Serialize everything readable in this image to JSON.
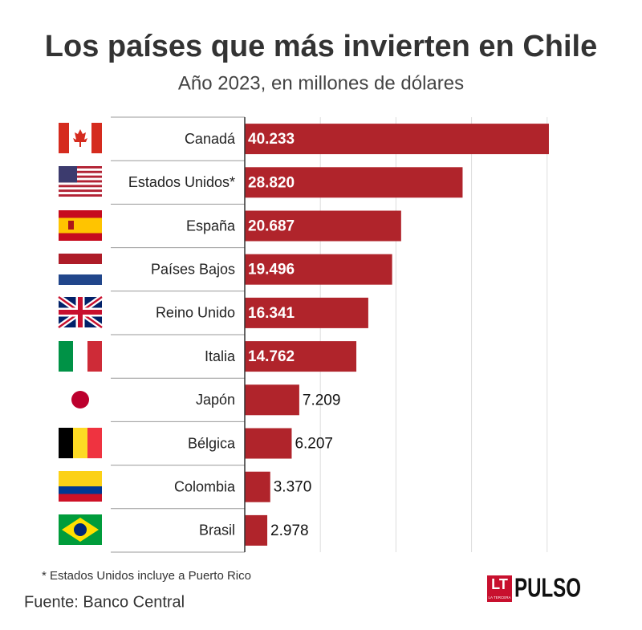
{
  "chart_data": {
    "type": "hbar",
    "title": "Los países que más invierten en Chile",
    "subtitle": "Año 2023, en millones de dólares",
    "categories": [
      "Canadá",
      "Estados Unidos*",
      "España",
      "Países Bajos",
      "Reino Unido",
      "Italia",
      "Japón",
      "Bélgica",
      "Colombia",
      "Brasil"
    ],
    "values": [
      40233,
      28820,
      20687,
      19496,
      16341,
      14762,
      7209,
      6207,
      3370,
      2978
    ],
    "value_labels": [
      "40.233",
      "28.820",
      "20.687",
      "19.496",
      "16.341",
      "14.762",
      "7.209",
      "6.207",
      "3.370",
      "2.978"
    ],
    "color": "#b0242b",
    "xlim": [
      0,
      42000
    ],
    "xticks": [
      10000,
      20000,
      30000,
      40000
    ],
    "grid": true,
    "footnote": "* Estados Unidos incluye a Puerto Rico",
    "source": "Fuente: Banco Central"
  },
  "logo": {
    "mark": "LT",
    "small": "LA TERCERA",
    "name": "PULSO"
  }
}
